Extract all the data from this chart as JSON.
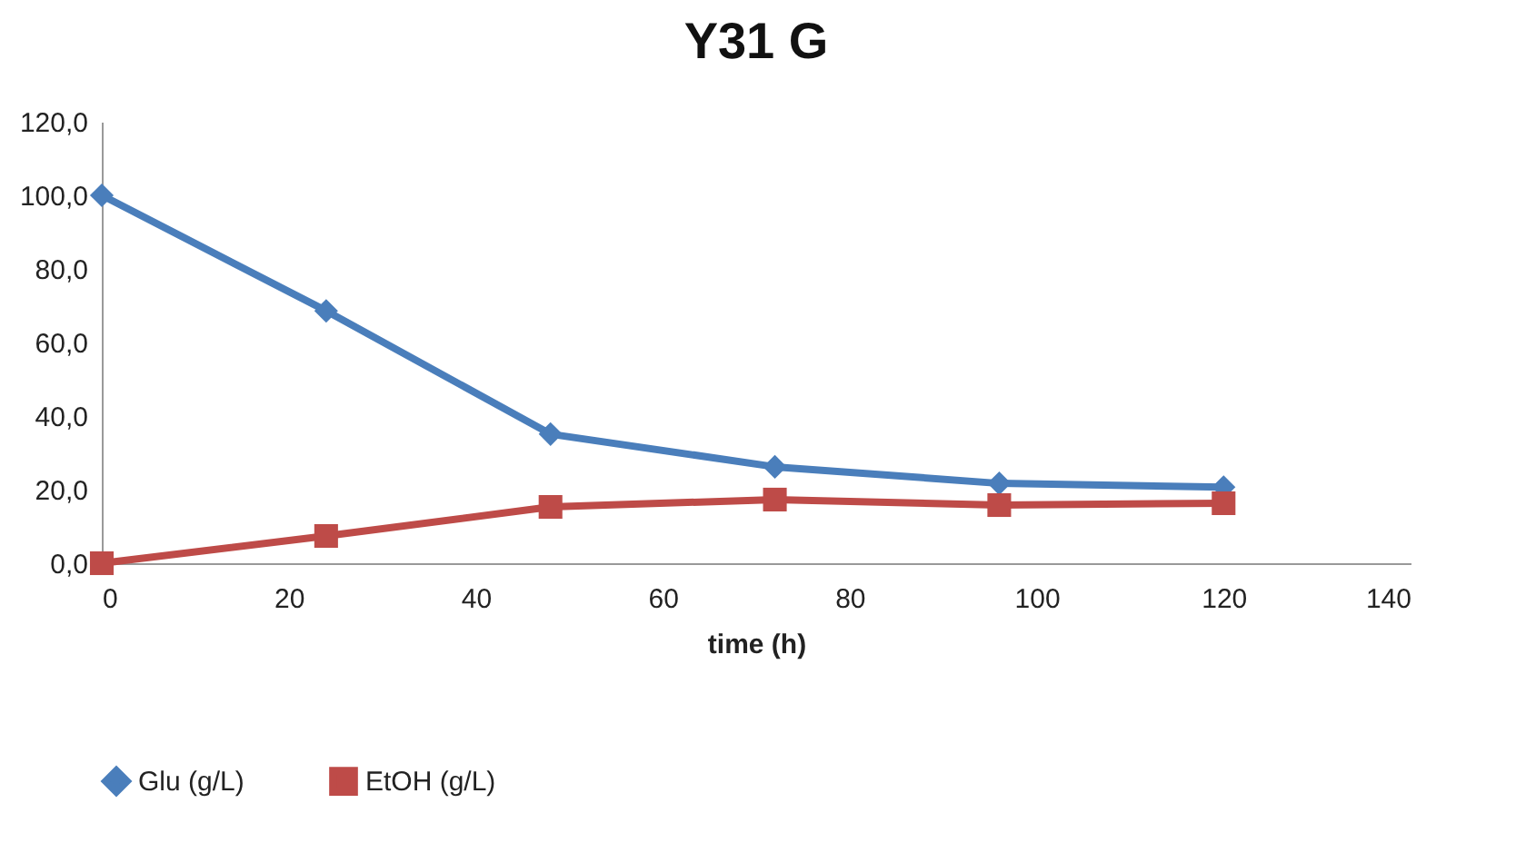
{
  "chart_data": {
    "type": "line",
    "title": "Y31 G",
    "xlabel": "time (h)",
    "x": [
      0,
      24,
      48,
      72,
      96,
      120
    ],
    "series": [
      {
        "name": "Glu (g/L)",
        "color": "#4a7ebb",
        "marker": "diamond",
        "values": [
          100,
          68.6,
          35.1,
          26.2,
          21.7,
          20.7
        ]
      },
      {
        "name": "EtOH (g/L)",
        "color": "#be4b48",
        "marker": "square",
        "values": [
          0,
          7.4,
          15.3,
          17.3,
          15.8,
          16.3
        ]
      }
    ],
    "xlim": [
      0,
      140
    ],
    "xticks": [
      0,
      20,
      40,
      60,
      80,
      100,
      120,
      140
    ],
    "ylim": [
      0,
      120
    ],
    "yticks": [
      {
        "value": 0,
        "label": "0,0"
      },
      {
        "value": 20,
        "label": "20,0"
      },
      {
        "value": 40,
        "label": "40,0"
      },
      {
        "value": 60,
        "label": "60,0"
      },
      {
        "value": 80,
        "label": "80,0"
      },
      {
        "value": 100,
        "label": "100,0"
      },
      {
        "value": 120,
        "label": "120,0"
      }
    ],
    "grid": false,
    "legend": "bottom"
  }
}
